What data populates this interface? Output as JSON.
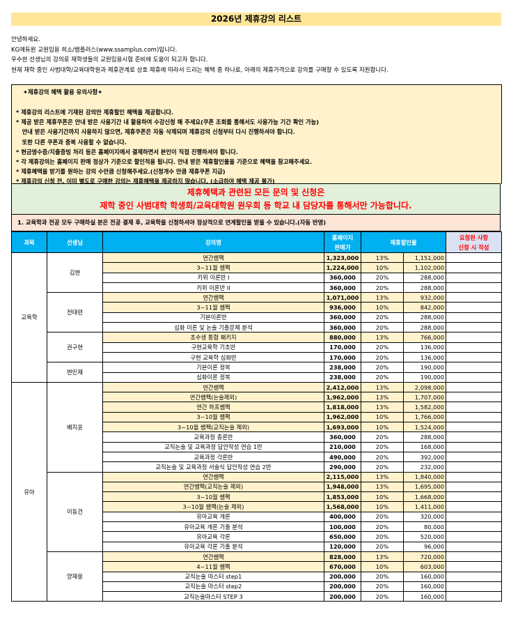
{
  "title": "2026년 제휴강의 리스트",
  "intro": [
    "안녕하세요.",
    "KG에듀원 교원임용 희소/쌤플러스(www.ssamplus.com)입니다.",
    "우수한 선생님의 강의로 재학생들의 교원임용시험 준비에 도움이 되고자 합니다.",
    "현재 재학 중인 사범대학/교육대학원과 제휴관계로 상호 제휴에 따라서 드리는 혜택 중 하나로, 아래의 제휴가격으로 강의를 구매할 수 있도록 지원합니다."
  ],
  "notice": {
    "heading": "✦제휴강의 혜택 활용 유의사항✦",
    "items": [
      "* 제휴강의 리스트에 기재된 강의만 제휴할인 혜택을 제공합니다.",
      "* 제공 받은 제휴쿠폰은 안내 받은 사용기간 내 활용하여 수강신청 해 주세요(쿠폰 조회를 통해서도 사용가능 기간 확인 가능)",
      "   안내 받은 사용기간까지 사용하지 않으면, 제휴쿠폰은 자동 삭제되며 제휴강의 신청부터 다시 진행하셔야 합니다.",
      "   또한 다른 쿠폰과 중복 사용할 수 없습니다.",
      "* 현금영수증/지출증빙 처리 등은 홈페이지에서 결제하면서 본인이 직접 진행하셔야 합니다.",
      "* 각 제휴강의는 홈페이지 판매 정상가 기준으로 할인적용 됩니다. 안내 받은 제휴할인율을 기준으로 혜택을 참고해주세요.",
      "* 제휴혜택을 받기를 원하는 강의 수만큼 신청해주세요.(신청개수 만큼 제휴쿠폰 지급)",
      "* 제휴강의 신청 전, 이미 별도로 구매한 강의는 제휴혜택을 제공하지 않습니다. (소급하여 혜택 제공 불가)"
    ]
  },
  "contact": [
    "제휴혜택과 관련된 모든 문의 및 신청은",
    "재학 중인 사범대학 학생회/교육대학원 원우회 등 학교 내 담당자를 통해서만 가능합니다."
  ],
  "note": "1. 교육학과 전공 모두 구매하실 분은 전공 결제 후, 교육학을 신청하셔야 정상적으로 연계할인을 받을 수 있습니다.(자동 반영)",
  "table": {
    "headers": {
      "subject": "과목",
      "teacher": "선생님",
      "course": "강의명",
      "price": "홈페이지\n판매가",
      "discount": "제휴할인율",
      "request": "요청된 사항\n신청 시 작성"
    },
    "subjects": [
      {
        "name": "교육학",
        "teachers": [
          {
            "name": "김현",
            "courses": [
              {
                "name": "연간쌤팩",
                "price": "1,323,000",
                "rate": "13%",
                "final": "1,151,000",
                "pkg": true
              },
              {
                "name": "3~11월 쌤팩",
                "price": "1,224,000",
                "rate": "10%",
                "final": "1,102,000",
                "pkg": true
              },
              {
                "name": "키위 이론반 I",
                "price": "360,000",
                "rate": "20%",
                "final": "288,000"
              },
              {
                "name": "키위 이론반 II",
                "price": "360,000",
                "rate": "20%",
                "final": "288,000"
              }
            ]
          },
          {
            "name": "전태련",
            "courses": [
              {
                "name": "연간쌤팩",
                "price": "1,071,000",
                "rate": "13%",
                "final": "932,000",
                "pkg": true
              },
              {
                "name": "3~11월 쌤팩",
                "price": "936,000",
                "rate": "10%",
                "final": "842,000",
                "pkg": true
              },
              {
                "name": "기본이론반",
                "price": "360,000",
                "rate": "20%",
                "final": "288,000"
              },
              {
                "name": "심화 이론 및 논술 기출문제 분석",
                "price": "360,000",
                "rate": "20%",
                "final": "288,000"
              }
            ]
          },
          {
            "name": "권구현",
            "courses": [
              {
                "name": "초수생 통합 패키지",
                "price": "880,000",
                "rate": "13%",
                "final": "766,000",
                "pkg": true
              },
              {
                "name": "구현교육학 기초반",
                "price": "170,000",
                "rate": "20%",
                "final": "136,000"
              },
              {
                "name": "구현 교육학 심화반",
                "price": "170,000",
                "rate": "20%",
                "final": "136,000"
              }
            ]
          },
          {
            "name": "변민재",
            "courses": [
              {
                "name": "기본이론 정복",
                "price": "238,000",
                "rate": "20%",
                "final": "190,000"
              },
              {
                "name": "심화이론 정복",
                "price": "238,000",
                "rate": "20%",
                "final": "190,000"
              }
            ]
          }
        ]
      },
      {
        "name": "유아",
        "teachers": [
          {
            "name": "배지윤",
            "courses": [
              {
                "name": "연간쌤팩",
                "price": "2,412,000",
                "rate": "13%",
                "final": "2,098,000",
                "pkg": true
              },
              {
                "name": "연간쌤팩(논술제외)",
                "price": "1,962,000",
                "rate": "13%",
                "final": "1,707,000",
                "pkg": true
              },
              {
                "name": "연간 하프쌤팩",
                "price": "1,818,000",
                "rate": "13%",
                "final": "1,582,000",
                "pkg": true
              },
              {
                "name": "3~10월 쌤팩",
                "price": "1,962,000",
                "rate": "10%",
                "final": "1,766,000",
                "pkg": true
              },
              {
                "name": "3~10월 쌤팩(교직논술 제외)",
                "price": "1,693,000",
                "rate": "10%",
                "final": "1,524,000",
                "pkg": true
              },
              {
                "name": "교육과정 총론반",
                "price": "360,000",
                "rate": "20%",
                "final": "288,000"
              },
              {
                "name": "교직논술 및 교육과정 답안작성 연습 1반",
                "price": "210,000",
                "rate": "20%",
                "final": "168,000"
              },
              {
                "name": "교육과정 각론반",
                "price": "490,000",
                "rate": "20%",
                "final": "392,000"
              },
              {
                "name": "교직논술 및 교육과정 서술식 답안작성 연습 2반",
                "price": "290,000",
                "rate": "20%",
                "final": "232,000"
              }
            ]
          },
          {
            "name": "이동건",
            "courses": [
              {
                "name": "연간쌤팩",
                "price": "2,115,000",
                "rate": "13%",
                "final": "1,840,000",
                "pkg": true
              },
              {
                "name": "연간쌤팩(교직논술 제외)",
                "price": "1,948,000",
                "rate": "13%",
                "final": "1,695,000",
                "pkg": true
              },
              {
                "name": "3~10월 쌤팩",
                "price": "1,853,000",
                "rate": "10%",
                "final": "1,668,000",
                "pkg": true
              },
              {
                "name": "3~10월 쌤팩(논술 제외)",
                "price": "1,568,000",
                "rate": "10%",
                "final": "1,411,000",
                "pkg": true
              },
              {
                "name": "유아교육 개론",
                "price": "400,000",
                "rate": "20%",
                "final": "320,000"
              },
              {
                "name": "유아교육 개론 기출 분석",
                "price": "100,000",
                "rate": "20%",
                "final": "80,000"
              },
              {
                "name": "유아교육 각론",
                "price": "650,000",
                "rate": "20%",
                "final": "520,000"
              },
              {
                "name": "유아교육 각론 기출 분석",
                "price": "120,000",
                "rate": "20%",
                "final": "96,000"
              }
            ]
          },
          {
            "name": "양재웅",
            "courses": [
              {
                "name": "연간쌤팩",
                "price": "828,000",
                "rate": "13%",
                "final": "720,000",
                "pkg": true
              },
              {
                "name": "4~11월 쌤팩",
                "price": "670,000",
                "rate": "10%",
                "final": "603,000",
                "pkg": true
              },
              {
                "name": "교직논술 마스터 step1",
                "price": "200,000",
                "rate": "20%",
                "final": "160,000"
              },
              {
                "name": "교직논술 마스터 step2",
                "price": "200,000",
                "rate": "20%",
                "final": "160,000"
              },
              {
                "name": "교직논술마스터 STEP 3",
                "price": "200,000",
                "rate": "20%",
                "final": "160,000"
              }
            ]
          }
        ]
      }
    ]
  },
  "colors": {
    "header": "#00B0F0",
    "package_row": "#FFF2CC",
    "title_bg": "#FFE699",
    "contact_text": "#FF0000"
  }
}
